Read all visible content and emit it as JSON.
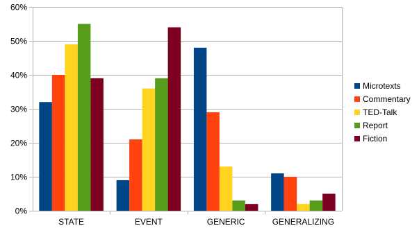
{
  "chart_data": {
    "type": "bar",
    "title": "",
    "xlabel": "",
    "ylabel": "",
    "ylim": [
      0,
      60
    ],
    "yticks": [
      0,
      10,
      20,
      30,
      40,
      50,
      60
    ],
    "y_tick_labels": [
      "0%",
      "10%",
      "20%",
      "30%",
      "40%",
      "50%",
      "60%"
    ],
    "grid": "horizontal",
    "legend_position": "right",
    "categories": [
      "STATE",
      "EVENT",
      "GENERIC",
      "GENERALIZING"
    ],
    "series": [
      {
        "name": "Microtexts",
        "color": "#004586",
        "values": [
          32,
          9,
          48,
          11
        ]
      },
      {
        "name": "Commentary",
        "color": "#ff420e",
        "values": [
          40,
          21,
          29,
          10
        ]
      },
      {
        "name": "TED-Talk",
        "color": "#ffd320",
        "values": [
          49,
          36,
          13,
          2
        ]
      },
      {
        "name": "Report",
        "color": "#579d1c",
        "values": [
          55,
          39,
          3,
          3
        ]
      },
      {
        "name": "Fiction",
        "color": "#7e0021",
        "values": [
          39,
          54,
          2,
          5
        ]
      }
    ]
  }
}
